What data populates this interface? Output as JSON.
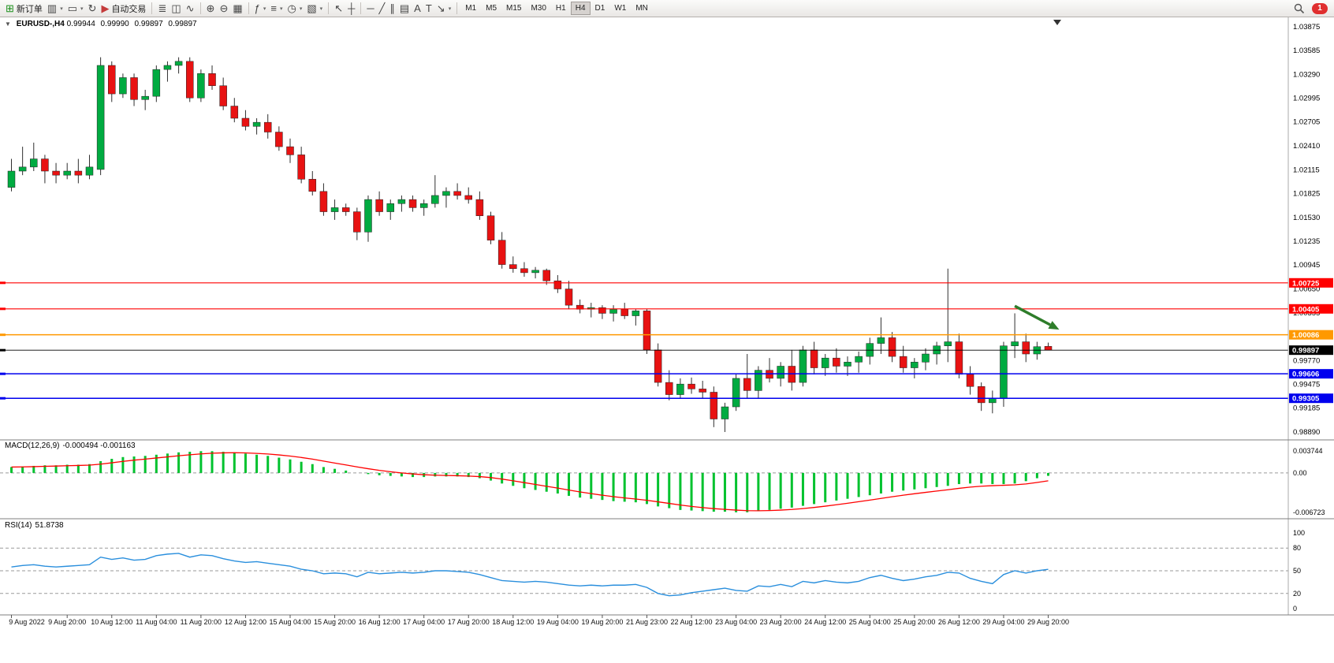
{
  "toolbar": {
    "groups": [
      {
        "items": [
          {
            "name": "new-order-button",
            "icon": "new-order-icon",
            "glyph": "⊞",
            "glyph_color": "#1a8f1a",
            "label": "新订单"
          },
          {
            "name": "new-chart-button",
            "icon": "chart-window-icon",
            "glyph": "▥",
            "dropdown": true
          },
          {
            "name": "profiles-button",
            "icon": "profiles-icon",
            "glyph": "▭",
            "dropdown": true
          },
          {
            "name": "refresh-button",
            "icon": "refresh-icon",
            "glyph": "↻"
          },
          {
            "name": "autotrade-button",
            "icon": "autotrade-play-icon",
            "glyph": "▶",
            "glyph_color": "#c43b3b",
            "label": "自动交易"
          }
        ]
      },
      {
        "items": [
          {
            "name": "bar-chart-button",
            "icon": "ohlc-bars-icon",
            "glyph": "≣"
          },
          {
            "name": "candlestick-button",
            "icon": "candlestick-icon",
            "glyph": "◫"
          },
          {
            "name": "line-chart-button",
            "icon": "line-chart-icon",
            "glyph": "∿"
          }
        ]
      },
      {
        "items": [
          {
            "name": "zoom-in-button",
            "icon": "zoom-in-icon",
            "glyph": "⊕"
          },
          {
            "name": "zoom-out-button",
            "icon": "zoom-out-icon",
            "glyph": "⊖"
          },
          {
            "name": "tile-windows-button",
            "icon": "tile-windows-icon",
            "glyph": "▦"
          }
        ]
      },
      {
        "items": [
          {
            "name": "indicators-button",
            "icon": "indicators-icon",
            "glyph": "ƒ",
            "dropdown": true
          },
          {
            "name": "objects-list-button",
            "icon": "objects-list-icon",
            "glyph": "≡",
            "dropdown": true
          },
          {
            "name": "period-button",
            "icon": "clock-icon",
            "glyph": "◷",
            "dropdown": true
          },
          {
            "name": "template-button",
            "icon": "template-icon",
            "glyph": "▧",
            "dropdown": true
          }
        ]
      },
      {
        "items": [
          {
            "name": "cursor-button",
            "icon": "cursor-icon",
            "glyph": "↖"
          },
          {
            "name": "crosshair-button",
            "icon": "crosshair-icon",
            "glyph": "┼"
          }
        ]
      },
      {
        "items": [
          {
            "name": "horizontal-line-button",
            "icon": "horizontal-line-icon",
            "glyph": "─"
          },
          {
            "name": "trendline-button",
            "icon": "trendline-icon",
            "glyph": "╱"
          },
          {
            "name": "channel-button",
            "icon": "channel-icon",
            "glyph": "∥"
          },
          {
            "name": "fibonacci-button",
            "icon": "fibonacci-icon",
            "glyph": "▤"
          },
          {
            "name": "text-button",
            "icon": "text-icon",
            "glyph": "A"
          },
          {
            "name": "label-button",
            "icon": "label-icon",
            "glyph": "T"
          },
          {
            "name": "arrows-button",
            "icon": "arrow-object-icon",
            "glyph": "↘",
            "dropdown": true
          }
        ]
      }
    ],
    "timeframes": [
      "M1",
      "M5",
      "M15",
      "M30",
      "H1",
      "H4",
      "D1",
      "W1",
      "MN"
    ],
    "active_timeframe": "H4",
    "notification_count": "1"
  },
  "chart_header": {
    "symbol_period": "EURUSD-,H4",
    "open": "0.99944",
    "high": "0.99990",
    "low": "0.99897",
    "close": "0.99897"
  },
  "price_axis": {
    "labels": [
      "1.03875",
      "1.03585",
      "1.03290",
      "1.02995",
      "1.02705",
      "1.02410",
      "1.02115",
      "1.01825",
      "1.01530",
      "1.01235",
      "1.00945",
      "1.00650",
      "1.00355",
      "1.00065",
      "0.99770",
      "0.99475",
      "0.99185",
      "0.98890"
    ]
  },
  "levels": [
    {
      "name": "resistance-line-1",
      "label": "1.00725",
      "value": 1.00725,
      "color": "#FF0000",
      "width": 1.1
    },
    {
      "name": "resistance-line-2",
      "label": "1.00405",
      "value": 1.00405,
      "color": "#FF0000",
      "width": 1.1
    },
    {
      "name": "pivot-line",
      "label": "1.00086",
      "value": 1.00086,
      "color": "#FF9900",
      "width": 1.5
    },
    {
      "name": "current-price-line",
      "label": "0.99897",
      "value": 0.99897,
      "color": "#000000",
      "width": 0.8
    },
    {
      "name": "support-line-1",
      "label": "0.99606",
      "value": 0.99606,
      "color": "#0000EE",
      "width": 1.5
    },
    {
      "name": "support-line-2",
      "label": "0.99305",
      "value": 0.99305,
      "color": "#0000EE",
      "width": 1.5
    }
  ],
  "chart_data": [
    {
      "type": "candlestick",
      "symbol": "EURUSD-",
      "timeframe": "H4",
      "ylim": [
        0.9889,
        1.03875
      ],
      "x_labels": [
        "9 Aug 2022",
        "9 Aug 20:00",
        "10 Aug 12:00",
        "11 Aug 04:00",
        "11 Aug 20:00",
        "12 Aug 12:00",
        "15 Aug 04:00",
        "15 Aug 20:00",
        "16 Aug 12:00",
        "17 Aug 04:00",
        "17 Aug 20:00",
        "18 Aug 12:00",
        "19 Aug 04:00",
        "19 Aug 20:00",
        "21 Aug 23:00",
        "22 Aug 12:00",
        "23 Aug 04:00",
        "23 Aug 20:00",
        "24 Aug 12:00",
        "25 Aug 04:00",
        "25 Aug 20:00",
        "26 Aug 12:00",
        "29 Aug 04:00",
        "29 Aug 20:00"
      ],
      "x_label_indices": [
        0,
        5,
        9,
        13,
        17,
        21,
        25,
        29,
        33,
        37,
        41,
        45,
        49,
        53,
        57,
        61,
        65,
        69,
        73,
        77,
        81,
        85,
        89,
        93
      ],
      "candles": [
        [
          1.019,
          1.0225,
          1.0185,
          1.021
        ],
        [
          1.021,
          1.024,
          1.0205,
          1.0215
        ],
        [
          1.0215,
          1.0245,
          1.021,
          1.0225
        ],
        [
          1.0225,
          1.023,
          1.0195,
          1.021
        ],
        [
          1.021,
          1.022,
          1.0195,
          1.0205
        ],
        [
          1.0205,
          1.022,
          1.02,
          1.021
        ],
        [
          1.021,
          1.0225,
          1.0195,
          1.0205
        ],
        [
          1.0205,
          1.023,
          1.02,
          1.0215
        ],
        [
          1.0212,
          1.035,
          1.0205,
          1.034
        ],
        [
          1.034,
          1.0345,
          1.0295,
          1.0305
        ],
        [
          1.0305,
          1.033,
          1.03,
          1.0325
        ],
        [
          1.0325,
          1.033,
          1.029,
          1.0298
        ],
        [
          1.0298,
          1.031,
          1.0285,
          1.0302
        ],
        [
          1.0302,
          1.034,
          1.0295,
          1.0335
        ],
        [
          1.0335,
          1.0345,
          1.032,
          1.034
        ],
        [
          1.034,
          1.035,
          1.033,
          1.0345
        ],
        [
          1.0345,
          1.035,
          1.0295,
          1.03
        ],
        [
          1.03,
          1.0335,
          1.0295,
          1.033
        ],
        [
          1.033,
          1.034,
          1.031,
          1.0315
        ],
        [
          1.0315,
          1.0325,
          1.0285,
          1.029
        ],
        [
          1.029,
          1.03,
          1.027,
          1.0275
        ],
        [
          1.0275,
          1.0285,
          1.026,
          1.0265
        ],
        [
          1.0265,
          1.0275,
          1.0255,
          1.027
        ],
        [
          1.027,
          1.028,
          1.025,
          1.0258
        ],
        [
          1.0258,
          1.0265,
          1.0235,
          1.024
        ],
        [
          1.024,
          1.025,
          1.022,
          1.023
        ],
        [
          1.023,
          1.024,
          1.0195,
          1.02
        ],
        [
          1.02,
          1.021,
          1.018,
          1.0185
        ],
        [
          1.0185,
          1.0195,
          1.0155,
          1.016
        ],
        [
          1.016,
          1.0175,
          1.015,
          1.0165
        ],
        [
          1.0165,
          1.017,
          1.0155,
          1.016
        ],
        [
          1.016,
          1.0165,
          1.0125,
          1.0135
        ],
        [
          1.0135,
          1.018,
          1.0123,
          1.0175
        ],
        [
          1.0175,
          1.0185,
          1.0155,
          1.016
        ],
        [
          1.016,
          1.0175,
          1.015,
          1.017
        ],
        [
          1.017,
          1.018,
          1.016,
          1.0175
        ],
        [
          1.0175,
          1.018,
          1.016,
          1.0165
        ],
        [
          1.0165,
          1.0175,
          1.0155,
          1.017
        ],
        [
          1.017,
          1.0205,
          1.0165,
          1.018
        ],
        [
          1.018,
          1.019,
          1.0165,
          1.0185
        ],
        [
          1.0185,
          1.0195,
          1.0175,
          1.018
        ],
        [
          1.018,
          1.019,
          1.017,
          1.0175
        ],
        [
          1.0175,
          1.0185,
          1.015,
          1.0155
        ],
        [
          1.0155,
          1.016,
          1.012,
          1.0125
        ],
        [
          1.0125,
          1.0135,
          1.009,
          1.0095
        ],
        [
          1.0095,
          1.0105,
          1.0085,
          1.009
        ],
        [
          1.009,
          1.0098,
          1.008,
          1.0085
        ],
        [
          1.0085,
          1.0092,
          1.0078,
          1.0088
        ],
        [
          1.0088,
          1.009,
          1.007,
          1.0075
        ],
        [
          1.0075,
          1.0082,
          1.006,
          1.0065
        ],
        [
          1.0065,
          1.0075,
          1.004,
          1.0045
        ],
        [
          1.0045,
          1.0052,
          1.0035,
          1.004
        ],
        [
          1.004,
          1.0048,
          1.003,
          1.0042
        ],
        [
          1.0042,
          1.0045,
          1.0028,
          1.0035
        ],
        [
          1.0035,
          1.0045,
          1.0025,
          1.004
        ],
        [
          1.004,
          1.0048,
          1.0028,
          1.0032
        ],
        [
          1.0032,
          1.004,
          1.002,
          1.0038
        ],
        [
          1.0038,
          1.004,
          0.9985,
          0.999
        ],
        [
          0.999,
          0.9998,
          0.9945,
          0.995
        ],
        [
          0.995,
          0.9965,
          0.9928,
          0.9935
        ],
        [
          0.9935,
          0.9955,
          0.993,
          0.9948
        ],
        [
          0.9948,
          0.9956,
          0.9936,
          0.9942
        ],
        [
          0.9942,
          0.9952,
          0.993,
          0.9938
        ],
        [
          0.9938,
          0.9945,
          0.9895,
          0.9905
        ],
        [
          0.9905,
          0.9925,
          0.9889,
          0.992
        ],
        [
          0.992,
          0.996,
          0.9915,
          0.9955
        ],
        [
          0.9955,
          0.9985,
          0.993,
          0.994
        ],
        [
          0.994,
          0.997,
          0.993,
          0.9965
        ],
        [
          0.9965,
          0.998,
          0.995,
          0.9955
        ],
        [
          0.9955,
          0.9975,
          0.9945,
          0.997
        ],
        [
          0.997,
          0.999,
          0.994,
          0.995
        ],
        [
          0.995,
          0.9995,
          0.9945,
          0.999
        ],
        [
          0.999,
          1.0,
          0.996,
          0.9968
        ],
        [
          0.9968,
          0.9985,
          0.9958,
          0.998
        ],
        [
          0.998,
          0.9992,
          0.9962,
          0.997
        ],
        [
          0.997,
          0.9982,
          0.9958,
          0.9975
        ],
        [
          0.9975,
          0.9988,
          0.9962,
          0.9982
        ],
        [
          0.9982,
          1.0005,
          0.9972,
          0.9998
        ],
        [
          0.9998,
          1.003,
          0.9985,
          1.0005
        ],
        [
          1.0005,
          1.0012,
          0.9975,
          0.9982
        ],
        [
          0.9982,
          0.9995,
          0.9962,
          0.9968
        ],
        [
          0.9968,
          0.998,
          0.9955,
          0.9975
        ],
        [
          0.9975,
          0.9992,
          0.9965,
          0.9985
        ],
        [
          0.9985,
          1.0,
          0.9972,
          0.9995
        ],
        [
          0.9995,
          1.009,
          0.9975,
          1.0
        ],
        [
          1.0,
          1.001,
          0.9955,
          0.996
        ],
        [
          0.996,
          0.997,
          0.9935,
          0.9945
        ],
        [
          0.9945,
          0.995,
          0.9915,
          0.9925
        ],
        [
          0.9925,
          0.994,
          0.9912,
          0.993
        ],
        [
          0.993,
          1.0,
          0.992,
          0.9995
        ],
        [
          0.9995,
          1.0035,
          0.998,
          1.0
        ],
        [
          1.0,
          1.001,
          0.9975,
          0.9985
        ],
        [
          0.9985,
          1.0,
          0.9978,
          0.9994
        ],
        [
          0.99944,
          0.9999,
          0.99897,
          0.99897
        ]
      ]
    },
    {
      "type": "bar",
      "title": "MACD(12,26,9)",
      "values_text": "-0.000494 -0.001163",
      "histogram_last": -0.000494,
      "signal_last": -0.001163,
      "ylim": [
        -0.006723,
        0.003744
      ],
      "axis_labels": [
        "0.003744",
        "0.00",
        "-0.006723"
      ],
      "histogram": [
        0.001,
        0.0011,
        0.0012,
        0.0013,
        0.0013,
        0.0014,
        0.0014,
        0.0015,
        0.002,
        0.0024,
        0.0027,
        0.0028,
        0.0029,
        0.0031,
        0.0033,
        0.0035,
        0.0036,
        0.0037,
        0.0037,
        0.0036,
        0.0035,
        0.0033,
        0.0031,
        0.0029,
        0.0026,
        0.0023,
        0.0019,
        0.0015,
        0.001,
        0.0007,
        0.0004,
        0.0,
        -0.0002,
        -0.0004,
        -0.0005,
        -0.0006,
        -0.0007,
        -0.0007,
        -0.0006,
        -0.0006,
        -0.0006,
        -0.0007,
        -0.0009,
        -0.0013,
        -0.0018,
        -0.0022,
        -0.0026,
        -0.0029,
        -0.0032,
        -0.0035,
        -0.0039,
        -0.0042,
        -0.0044,
        -0.0046,
        -0.0048,
        -0.0049,
        -0.005,
        -0.0053,
        -0.0057,
        -0.006,
        -0.0063,
        -0.0064,
        -0.0065,
        -0.0066,
        -0.0066,
        -0.0067,
        -0.0067,
        -0.0065,
        -0.0063,
        -0.0061,
        -0.0059,
        -0.0056,
        -0.0053,
        -0.005,
        -0.0047,
        -0.0044,
        -0.0041,
        -0.0038,
        -0.0035,
        -0.0032,
        -0.003,
        -0.0028,
        -0.0026,
        -0.0024,
        -0.0022,
        -0.0019,
        -0.0018,
        -0.0018,
        -0.0019,
        -0.0019,
        -0.0018,
        -0.0014,
        -0.0009,
        -0.000494
      ]
    },
    {
      "type": "line",
      "title": "RSI(14)",
      "value_text": "51.8738",
      "ylim": [
        0,
        100
      ],
      "levels": [
        80,
        50,
        20
      ],
      "axis_labels": [
        "100",
        "80",
        "50",
        "20",
        "0"
      ],
      "values": [
        55,
        57,
        58,
        56,
        55,
        56,
        57,
        58,
        68,
        65,
        67,
        64,
        65,
        70,
        72,
        73,
        68,
        71,
        70,
        66,
        63,
        61,
        62,
        60,
        58,
        56,
        52,
        50,
        46,
        47,
        46,
        42,
        48,
        46,
        47,
        48,
        47,
        48,
        50,
        50,
        49,
        48,
        45,
        41,
        37,
        36,
        35,
        36,
        35,
        33,
        31,
        30,
        31,
        30,
        31,
        31,
        32,
        28,
        20,
        17,
        18,
        21,
        23,
        25,
        27,
        24,
        23,
        30,
        29,
        32,
        29,
        36,
        34,
        37,
        35,
        34,
        36,
        41,
        44,
        40,
        37,
        39,
        42,
        44,
        48,
        47,
        40,
        36,
        33,
        45,
        50,
        47,
        50,
        51.8738
      ]
    }
  ],
  "annotations": [
    {
      "name": "sell-arrow",
      "type": "arrow",
      "color": "#2E7D2A",
      "from": {
        "candle": 90,
        "price": 1.0044
      },
      "to": {
        "candle": 93,
        "price": 1.0015
      }
    }
  ],
  "colors": {
    "bull": "#00AB41",
    "bear": "#E81212",
    "wick": "#2F2F2F",
    "macd_histogram": "#00C22E",
    "macd_signal": "#FF0000",
    "rsi_line": "#2A8FDD",
    "axis_text": "#000000",
    "divider": "#7F7F7F",
    "level_dash": "#9A9A9A"
  }
}
